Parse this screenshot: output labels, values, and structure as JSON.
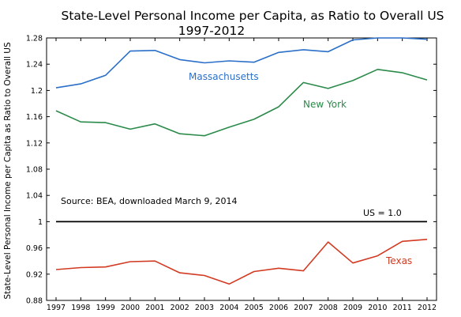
{
  "chart_data": {
    "type": "line",
    "title": "State-Level Personal Income per Capita, as Ratio to Overall US",
    "subtitle": "1997-2012",
    "xlabel": "",
    "ylabel": "State-Level Personal Income per Capita as Ratio to Overall US",
    "x": [
      "1997",
      "1998",
      "1999",
      "2000",
      "2001",
      "2002",
      "2003",
      "2004",
      "2005",
      "2006",
      "2007",
      "2008",
      "2009",
      "2010",
      "2011",
      "2012"
    ],
    "ylim": [
      0.88,
      1.28
    ],
    "yticks": [
      "0.88",
      "0.92",
      "0.96",
      "1",
      "1.04",
      "1.08",
      "1.12",
      "1.16",
      "1.2",
      "1.24",
      "1.28"
    ],
    "grid": false,
    "series": [
      {
        "name": "Massachusetts",
        "color": "#2a6fc9",
        "values": [
          1.204,
          1.21,
          1.223,
          1.26,
          1.261,
          1.247,
          1.242,
          1.245,
          1.243,
          1.258,
          1.262,
          1.259,
          1.277,
          1.28,
          1.28,
          1.278
        ]
      },
      {
        "name": "New York",
        "color": "#2a8a4a",
        "values": [
          1.169,
          1.152,
          1.151,
          1.141,
          1.149,
          1.134,
          1.131,
          1.144,
          1.156,
          1.175,
          1.212,
          1.203,
          1.215,
          1.232,
          1.227,
          1.216
        ]
      },
      {
        "name": "Texas",
        "color": "#d23a22",
        "values": [
          0.927,
          0.93,
          0.931,
          0.939,
          0.94,
          0.922,
          0.918,
          0.905,
          0.924,
          0.929,
          0.925,
          0.969,
          0.937,
          0.948,
          0.97,
          0.973
        ]
      }
    ],
    "reference_line": {
      "label": "US = 1.0",
      "value": 1.0,
      "color": "#000000"
    },
    "annotations": [
      {
        "text": "Source:  BEA, downloaded March 9, 2014"
      }
    ]
  }
}
